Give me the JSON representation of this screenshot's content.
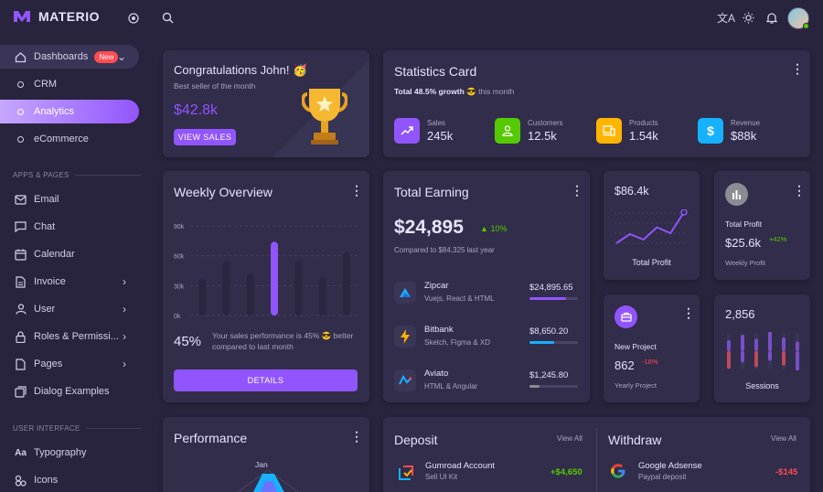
{
  "brand": {
    "name": "MATERIO",
    "color": "#9155fd"
  },
  "sidebar": {
    "dashboards": {
      "label": "Dashboards",
      "badge": "New"
    },
    "sub_items": [
      {
        "label": "CRM",
        "active": false
      },
      {
        "label": "Analytics",
        "active": true
      },
      {
        "label": "eCommerce",
        "active": false
      }
    ],
    "section_apps": "APPS & PAGES",
    "apps": [
      {
        "label": "Email",
        "icon": "mail-icon"
      },
      {
        "label": "Chat",
        "icon": "chat-icon"
      },
      {
        "label": "Calendar",
        "icon": "calendar-icon"
      },
      {
        "label": "Invoice",
        "icon": "invoice-icon"
      },
      {
        "label": "User",
        "icon": "user-icon"
      },
      {
        "label": "Roles & Permissi...",
        "icon": "lock-icon"
      },
      {
        "label": "Pages",
        "icon": "pages-icon"
      },
      {
        "label": "Dialog Examples",
        "icon": "dialog-icon"
      }
    ],
    "section_ui": "USER INTERFACE",
    "ui": [
      {
        "label": "Typography",
        "icon": "typography-icon"
      },
      {
        "label": "Icons",
        "icon": "icons-icon"
      }
    ]
  },
  "congrats": {
    "title": "Congratulations John! 🥳",
    "subtitle": "Best seller of the month",
    "amount": "$42.8k",
    "button": "VIEW SALES"
  },
  "statistics": {
    "title": "Statistics Card",
    "growth_bold": "Total 48.5% growth",
    "growth_rest": "😎 this month",
    "items": [
      {
        "label": "Sales",
        "value": "245k",
        "color": "#9155fd"
      },
      {
        "label": "Customers",
        "value": "12.5k",
        "color": "#56ca00"
      },
      {
        "label": "Products",
        "value": "1.54k",
        "color": "#ffb400"
      },
      {
        "label": "Revenue",
        "value": "$88k",
        "color": "#16b1ff"
      }
    ]
  },
  "weekly": {
    "title": "Weekly Overview",
    "yticks": [
      "90k",
      "60k",
      "30k",
      "0k"
    ],
    "bars": [
      37,
      55,
      42,
      74,
      55,
      38,
      63
    ],
    "highlight_index": 3,
    "percent": "45%",
    "desc": "Your sales performance is 45% 😎 better compared to last month",
    "button": "DETAILS"
  },
  "earning": {
    "title": "Total Earning",
    "amount": "$24,895",
    "change": "10%",
    "compare": "Compared to $84,325 last year",
    "rows": [
      {
        "name": "Zipcar",
        "tech": "Vuejs, React & HTML",
        "amount": "$24,895.65",
        "progress": 75,
        "color": "#9155fd"
      },
      {
        "name": "Bitbank",
        "tech": "Sketch, Figma & XD",
        "amount": "$8,650.20",
        "progress": 50,
        "color": "#16b1ff"
      },
      {
        "name": "Aviato",
        "tech": "HTML & Angular",
        "amount": "$1,245.80",
        "progress": 20,
        "color": "#8a8d93"
      }
    ]
  },
  "total_profit_line": {
    "value": "$86.4k",
    "label": "Total Profit",
    "points": [
      10,
      30,
      18,
      45,
      32,
      78
    ]
  },
  "total_profit": {
    "title": "Total Profit",
    "value": "$25.6k",
    "change": "+42%",
    "sub": "Weekly Profit"
  },
  "new_project": {
    "title": "New Project",
    "value": "862",
    "change": "-18%",
    "sub": "Yearly Project"
  },
  "sessions": {
    "value": "2,856",
    "label": "Sessions",
    "bars": [
      [
        40,
        55
      ],
      [
        60,
        35
      ],
      [
        45,
        50
      ],
      [
        70,
        30
      ],
      [
        50,
        45
      ],
      [
        35,
        60
      ]
    ]
  },
  "performance": {
    "title": "Performance",
    "label": "Jan"
  },
  "deposit": {
    "title": "Deposit",
    "view_all": "View All",
    "name": "Gumroad Account",
    "sub": "Sell UI Kit",
    "amount": "+$4,650"
  },
  "withdraw": {
    "title": "Withdraw",
    "view_all": "View All",
    "name": "Google Adsense",
    "sub": "Paypal deposit",
    "amount": "-$145"
  }
}
